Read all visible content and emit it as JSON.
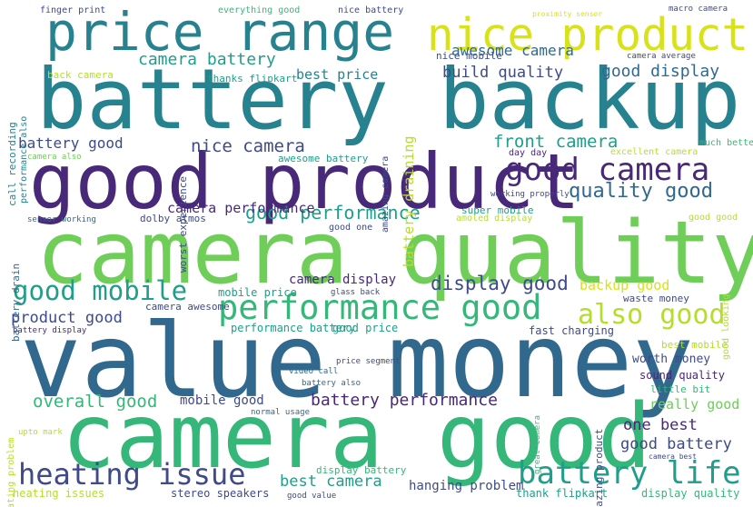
{
  "colors": {
    "background": "#ffffff",
    "purple": "#482878",
    "indigo": "#3e4a89",
    "blue": "#31688e",
    "teal": "#26828e",
    "green": "#1f9e89",
    "emerald": "#35b779",
    "lime": "#6ece58",
    "yellowgreen": "#b5de2b",
    "yellow": "#d7e219"
  },
  "words": [
    {
      "id": "value-money",
      "text": "value money"
    },
    {
      "id": "camera-quality",
      "text": "camera quality"
    },
    {
      "id": "camera-good",
      "text": "camera good"
    },
    {
      "id": "battery-backup",
      "text": "battery backup"
    },
    {
      "id": "good-product",
      "text": "good product"
    },
    {
      "id": "price-range",
      "text": "price range"
    },
    {
      "id": "nice-product",
      "text": "nice product"
    },
    {
      "id": "performance-good",
      "text": "performance good"
    },
    {
      "id": "good-camera",
      "text": "good camera"
    },
    {
      "id": "battery-life",
      "text": "battery life"
    },
    {
      "id": "heating-issue",
      "text": "heating issue"
    },
    {
      "id": "also-good",
      "text": "also good"
    },
    {
      "id": "good-mobile",
      "text": "good mobile"
    },
    {
      "id": "quality-good",
      "text": "quality good"
    },
    {
      "id": "good-performance",
      "text": "good performance"
    },
    {
      "id": "display-good",
      "text": "display good"
    },
    {
      "id": "battery-performance",
      "text": "battery performance"
    },
    {
      "id": "overall-good",
      "text": "overall good"
    },
    {
      "id": "front-camera",
      "text": "front camera"
    },
    {
      "id": "nice-camera",
      "text": "nice camera"
    },
    {
      "id": "camera-battery",
      "text": "camera battery"
    },
    {
      "id": "good-display",
      "text": "good display"
    },
    {
      "id": "build-quality",
      "text": "build quality"
    },
    {
      "id": "awesome-camera",
      "text": "awesome camera"
    },
    {
      "id": "good-battery",
      "text": "good battery"
    },
    {
      "id": "one-best",
      "text": "one best"
    },
    {
      "id": "best-camera",
      "text": "best camera"
    },
    {
      "id": "product-good",
      "text": "product good"
    },
    {
      "id": "battery-good",
      "text": "battery good"
    },
    {
      "id": "best-price",
      "text": "best price"
    },
    {
      "id": "camera-performance",
      "text": "camera performance"
    },
    {
      "id": "backup-good",
      "text": "backup good"
    },
    {
      "id": "camera-display",
      "text": "camera display"
    },
    {
      "id": "really-good",
      "text": "really good"
    },
    {
      "id": "mobile-good",
      "text": "mobile good"
    },
    {
      "id": "hanging-problem",
      "text": "hanging problem"
    },
    {
      "id": "worth-money",
      "text": "worth money"
    },
    {
      "id": "good-price",
      "text": "good price"
    },
    {
      "id": "performance-battery",
      "text": "performance battery"
    },
    {
      "id": "fast-charging",
      "text": "fast charging"
    },
    {
      "id": "stereo-speakers",
      "text": "stereo speakers"
    },
    {
      "id": "heating-issues",
      "text": "heating issues"
    },
    {
      "id": "thank-flipkart",
      "text": "thank flipkart"
    },
    {
      "id": "display-quality",
      "text": "display quality"
    },
    {
      "id": "display-battery",
      "text": "display battery"
    },
    {
      "id": "sound-quality",
      "text": "sound quality"
    },
    {
      "id": "little-bit",
      "text": "little bit"
    },
    {
      "id": "best-mobile",
      "text": "best mobile"
    },
    {
      "id": "mobile-price",
      "text": "mobile price"
    },
    {
      "id": "waste-money",
      "text": "waste money"
    },
    {
      "id": "camera-awesome",
      "text": "camera awesome"
    },
    {
      "id": "dolby-atmos",
      "text": "dolby atmos"
    },
    {
      "id": "super-mobile",
      "text": "super mobile"
    },
    {
      "id": "nice-mobile",
      "text": "nice mobile"
    },
    {
      "id": "thanks-flipkart",
      "text": "thanks flipkart"
    },
    {
      "id": "back-camera",
      "text": "back camera"
    },
    {
      "id": "finger-print",
      "text": "finger print"
    },
    {
      "id": "everything-good",
      "text": "everything good"
    },
    {
      "id": "nice-battery",
      "text": "nice battery"
    },
    {
      "id": "proximity-sensor",
      "text": "proximity sensor"
    },
    {
      "id": "macro-camera",
      "text": "macro camera"
    },
    {
      "id": "camera-average",
      "text": "camera average"
    },
    {
      "id": "excellent-camera",
      "text": "excellent camera"
    },
    {
      "id": "much-better",
      "text": "much better"
    },
    {
      "id": "day-day",
      "text": "day day"
    },
    {
      "id": "awesome-battery",
      "text": "awesome battery"
    },
    {
      "id": "camera-also",
      "text": "camera also"
    },
    {
      "id": "working-properly",
      "text": "working properly"
    },
    {
      "id": "sensor-working",
      "text": "sensor working"
    },
    {
      "id": "amoled-display",
      "text": "amoled display"
    },
    {
      "id": "good-good",
      "text": "good good"
    },
    {
      "id": "good-one",
      "text": "good one"
    },
    {
      "id": "glass-back",
      "text": "glass back"
    },
    {
      "id": "battery-display",
      "text": "battery display"
    },
    {
      "id": "price-segment",
      "text": "price segment"
    },
    {
      "id": "video-call",
      "text": "video call"
    },
    {
      "id": "battery-also",
      "text": "battery also"
    },
    {
      "id": "normal-usage",
      "text": "normal usage"
    },
    {
      "id": "upto-mark",
      "text": "upto mark"
    },
    {
      "id": "good-value",
      "text": "good value"
    },
    {
      "id": "camera-best",
      "text": "camera best"
    },
    {
      "id": "battery-draining",
      "text": "battery draining"
    },
    {
      "id": "call-recording",
      "text": "call recording"
    },
    {
      "id": "performance-also",
      "text": "performance also"
    },
    {
      "id": "worst-experience",
      "text": "worst experience"
    },
    {
      "id": "amazing-camera",
      "text": "amazing camera"
    },
    {
      "id": "battery-drain",
      "text": "battery drain"
    },
    {
      "id": "heating-problem",
      "text": "heating problem"
    },
    {
      "id": "great-camera",
      "text": "great camera"
    },
    {
      "id": "amazing-product",
      "text": "amazing product"
    },
    {
      "id": "good-looking",
      "text": "good looking"
    }
  ]
}
